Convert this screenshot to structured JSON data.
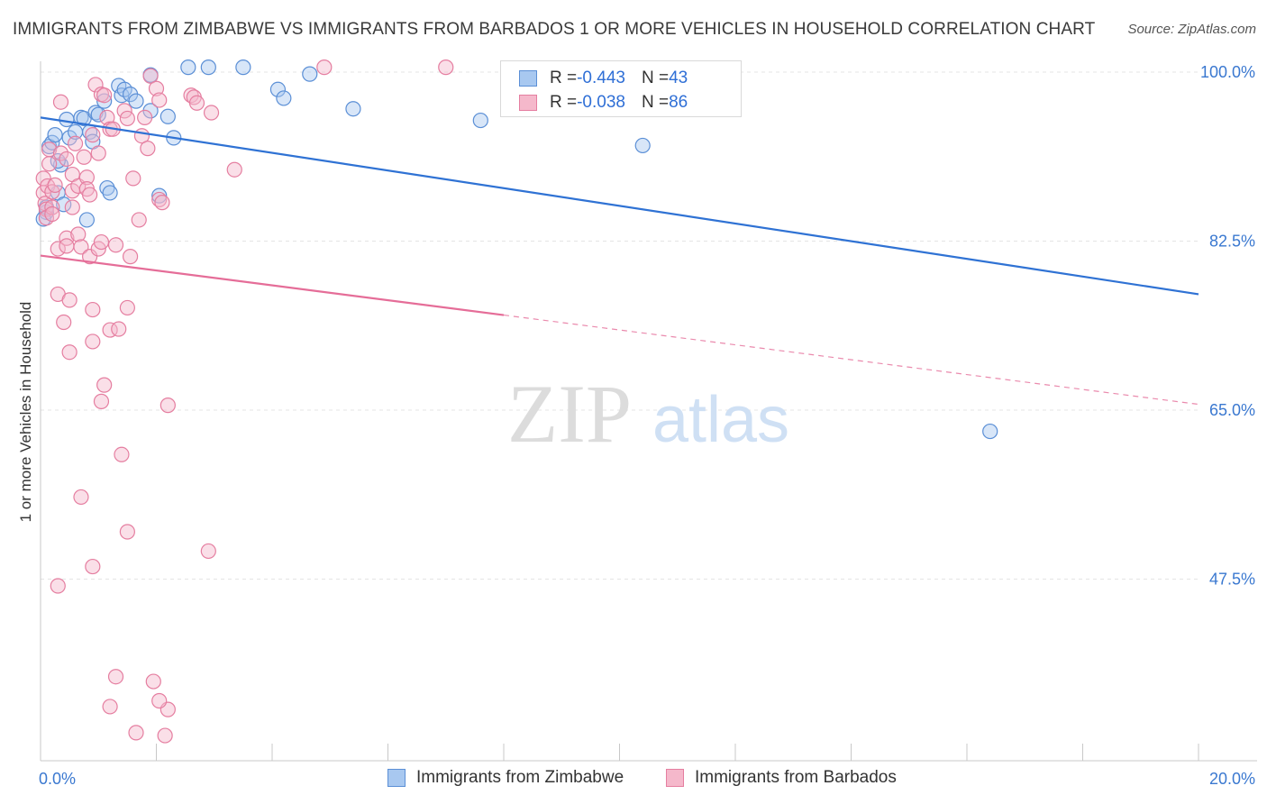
{
  "title": "IMMIGRANTS FROM ZIMBABWE VS IMMIGRANTS FROM BARBADOS 1 OR MORE VEHICLES IN HOUSEHOLD CORRELATION CHART",
  "source": "Source: ZipAtlas.com",
  "watermark": {
    "zip": "ZIP",
    "atlas": "atlas"
  },
  "legend": {
    "series1": {
      "r_label": "R = ",
      "r_value": "-0.443",
      "n_label": "N = ",
      "n_value": "43"
    },
    "series2": {
      "r_label": "R = ",
      "r_value": "-0.038",
      "n_label": "N = ",
      "n_value": "86"
    }
  },
  "bottom_legend": {
    "series1": "Immigrants from Zimbabwe",
    "series2": "Immigrants from Barbados"
  },
  "colors": {
    "blue_fill": "#a8c8f0",
    "blue_stroke": "#5b8fd6",
    "blue_line": "#2f72d4",
    "pink_fill": "#f5b8cb",
    "pink_stroke": "#e57ea0",
    "pink_line": "#e56d98",
    "axis_label": "#3a78d0"
  },
  "chart_data": {
    "type": "scatter",
    "title": "IMMIGRANTS FROM ZIMBABWE VS IMMIGRANTS FROM BARBADOS 1 OR MORE VEHICLES IN HOUSEHOLD CORRELATION CHART",
    "xlabel": "",
    "ylabel": "1 or more Vehicles in Household",
    "xlim": [
      0,
      20
    ],
    "ylim": [
      30,
      100
    ],
    "x_tick_labels": [
      {
        "value": 0,
        "label": "0.0%"
      },
      {
        "value": 20,
        "label": "20.0%"
      }
    ],
    "y_tick_labels": [
      {
        "value": 100,
        "label": "100.0%"
      },
      {
        "value": 82.5,
        "label": "82.5%"
      },
      {
        "value": 65,
        "label": "65.0%"
      },
      {
        "value": 47.5,
        "label": "47.5%"
      }
    ],
    "grid": true,
    "series": [
      {
        "name": "Immigrants from Zimbabwe",
        "color": "blue",
        "r": -0.443,
        "n": 43,
        "trend": {
          "x0": 0,
          "y0": 95.3,
          "x1": 20,
          "y1": 77.0,
          "solid_until": 20
        },
        "points": [
          [
            0.1,
            85.5
          ],
          [
            0.15,
            92.3
          ],
          [
            0.2,
            92.7
          ],
          [
            0.25,
            93.5
          ],
          [
            0.3,
            87.5
          ],
          [
            0.35,
            90.4
          ],
          [
            0.4,
            86.3
          ],
          [
            0.45,
            95.1
          ],
          [
            0.5,
            93.2
          ],
          [
            0.6,
            93.8
          ],
          [
            0.7,
            95.3
          ],
          [
            0.75,
            95.2
          ],
          [
            0.8,
            84.7
          ],
          [
            0.85,
            93.8
          ],
          [
            0.9,
            92.8
          ],
          [
            0.95,
            95.8
          ],
          [
            1.0,
            95.6
          ],
          [
            1.1,
            97.0
          ],
          [
            1.15,
            88.0
          ],
          [
            1.2,
            87.5
          ],
          [
            1.35,
            98.6
          ],
          [
            1.4,
            97.6
          ],
          [
            1.45,
            98.2
          ],
          [
            1.55,
            97.7
          ],
          [
            1.65,
            97.0
          ],
          [
            1.9,
            96.0
          ],
          [
            1.9,
            99.7
          ],
          [
            2.05,
            87.2
          ],
          [
            2.2,
            95.4
          ],
          [
            2.3,
            93.2
          ],
          [
            2.55,
            100.5
          ],
          [
            2.9,
            100.5
          ],
          [
            3.5,
            100.5
          ],
          [
            4.1,
            98.2
          ],
          [
            4.2,
            97.3
          ],
          [
            4.65,
            99.8
          ],
          [
            5.4,
            96.2
          ],
          [
            7.6,
            95.0
          ],
          [
            10.4,
            92.4
          ],
          [
            16.4,
            62.8
          ],
          [
            0.05,
            84.8
          ],
          [
            0.1,
            86.0
          ],
          [
            0.3,
            90.8
          ]
        ]
      },
      {
        "name": "Immigrants from Barbados",
        "color": "pink",
        "r": -0.038,
        "n": 86,
        "trend": {
          "x0": 0,
          "y0": 81.0,
          "x1": 20,
          "y1": 65.6,
          "solid_until": 8.0
        },
        "points": [
          [
            0.05,
            89.0
          ],
          [
            0.05,
            87.5
          ],
          [
            0.08,
            86.4
          ],
          [
            0.1,
            85.8
          ],
          [
            0.1,
            84.9
          ],
          [
            0.12,
            88.2
          ],
          [
            0.15,
            90.5
          ],
          [
            0.15,
            92.0
          ],
          [
            0.2,
            86.0
          ],
          [
            0.2,
            87.6
          ],
          [
            0.25,
            88.3
          ],
          [
            0.3,
            81.7
          ],
          [
            0.3,
            77.0
          ],
          [
            0.3,
            46.8
          ],
          [
            0.35,
            91.6
          ],
          [
            0.4,
            74.1
          ],
          [
            0.45,
            91.0
          ],
          [
            0.45,
            82.8
          ],
          [
            0.45,
            82.0
          ],
          [
            0.5,
            76.4
          ],
          [
            0.5,
            71.0
          ],
          [
            0.55,
            89.4
          ],
          [
            0.55,
            87.7
          ],
          [
            0.55,
            86.0
          ],
          [
            0.6,
            92.6
          ],
          [
            0.65,
            88.2
          ],
          [
            0.65,
            83.2
          ],
          [
            0.7,
            81.9
          ],
          [
            0.7,
            56.0
          ],
          [
            0.75,
            91.2
          ],
          [
            0.8,
            89.1
          ],
          [
            0.8,
            87.9
          ],
          [
            0.85,
            87.3
          ],
          [
            0.85,
            80.9
          ],
          [
            0.9,
            93.5
          ],
          [
            0.9,
            75.4
          ],
          [
            0.9,
            72.1
          ],
          [
            0.9,
            48.8
          ],
          [
            0.95,
            98.7
          ],
          [
            1.0,
            91.6
          ],
          [
            1.0,
            81.7
          ],
          [
            1.05,
            97.7
          ],
          [
            1.05,
            82.4
          ],
          [
            1.05,
            65.9
          ],
          [
            1.1,
            97.6
          ],
          [
            1.1,
            67.6
          ],
          [
            1.15,
            95.3
          ],
          [
            1.2,
            94.1
          ],
          [
            1.2,
            73.3
          ],
          [
            1.2,
            34.3
          ],
          [
            1.25,
            94.1
          ],
          [
            1.3,
            82.1
          ],
          [
            1.3,
            37.4
          ],
          [
            1.35,
            73.4
          ],
          [
            1.4,
            60.4
          ],
          [
            1.45,
            96.0
          ],
          [
            1.5,
            95.2
          ],
          [
            1.5,
            75.6
          ],
          [
            1.55,
            80.9
          ],
          [
            1.5,
            52.4
          ],
          [
            1.6,
            89.0
          ],
          [
            1.65,
            31.6
          ],
          [
            1.7,
            84.7
          ],
          [
            1.75,
            93.4
          ],
          [
            1.8,
            95.3
          ],
          [
            1.85,
            92.1
          ],
          [
            1.9,
            99.6
          ],
          [
            1.95,
            36.9
          ],
          [
            2.0,
            98.3
          ],
          [
            2.05,
            86.8
          ],
          [
            2.1,
            86.5
          ],
          [
            2.15,
            31.3
          ],
          [
            2.2,
            34.0
          ],
          [
            2.05,
            34.9
          ],
          [
            2.2,
            65.5
          ],
          [
            2.6,
            97.6
          ],
          [
            2.65,
            97.4
          ],
          [
            2.7,
            96.8
          ],
          [
            2.9,
            50.4
          ],
          [
            2.95,
            95.8
          ],
          [
            3.35,
            89.9
          ],
          [
            4.9,
            100.5
          ],
          [
            7.0,
            100.5
          ],
          [
            0.2,
            85.3
          ],
          [
            0.35,
            96.9
          ],
          [
            2.05,
            97.1
          ]
        ]
      }
    ]
  }
}
